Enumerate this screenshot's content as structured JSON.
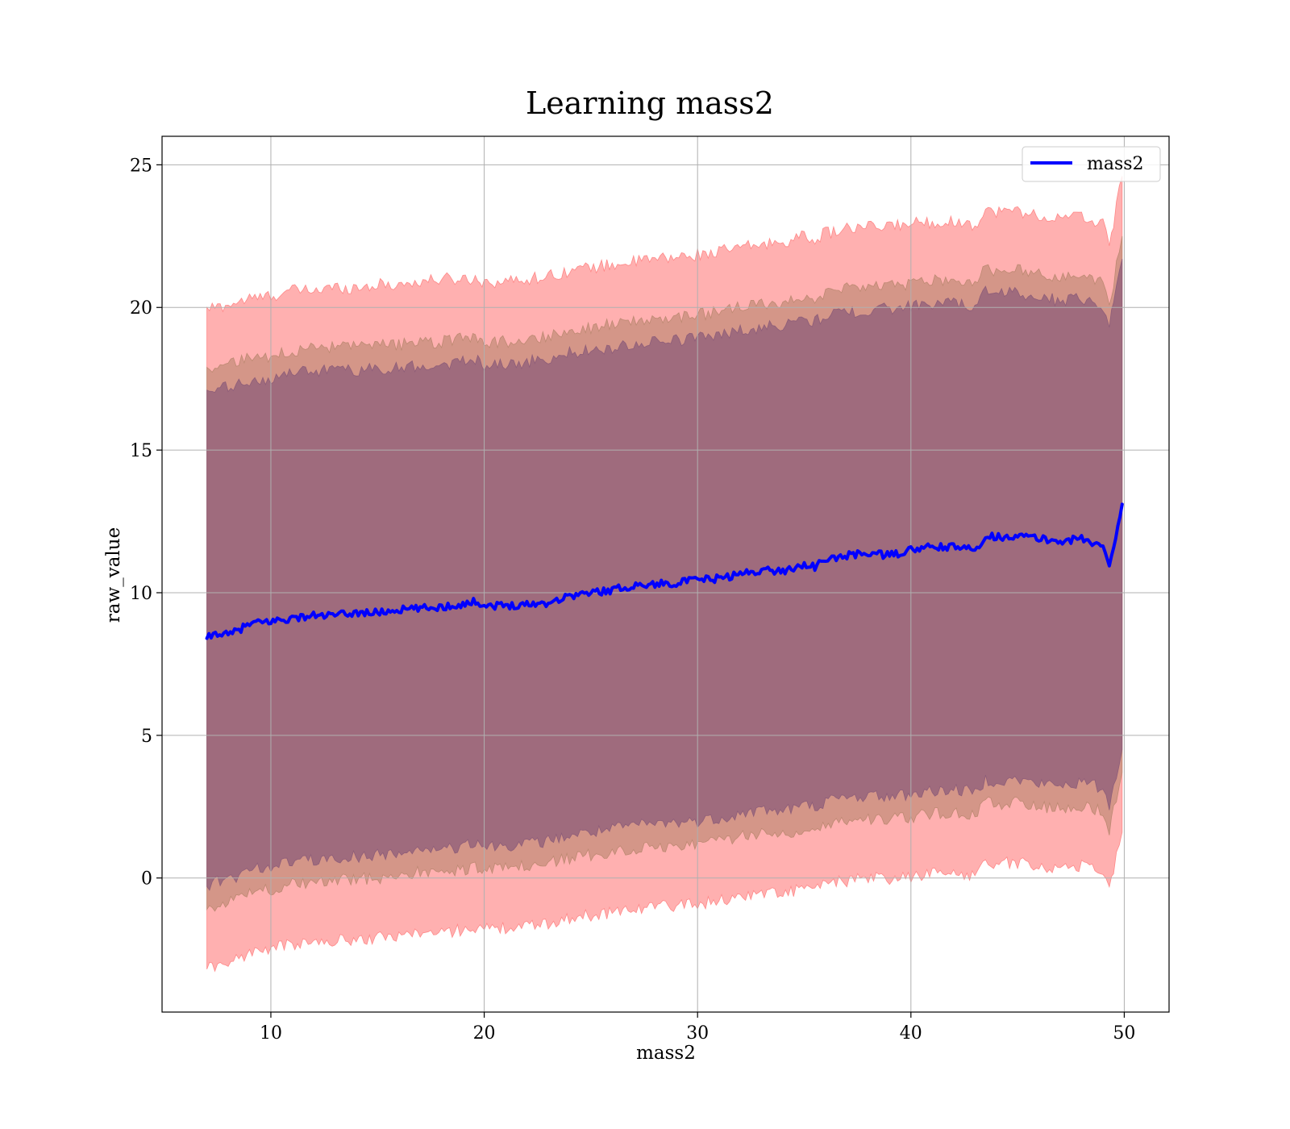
{
  "chart_data": {
    "type": "line",
    "title": "Learning mass2",
    "xlabel": "mass2",
    "ylabel": "raw_value",
    "xlim": [
      4.9,
      52.1
    ],
    "ylim": [
      -4.7,
      26.0
    ],
    "xticks": [
      10,
      20,
      30,
      40,
      50
    ],
    "yticks": [
      0,
      5,
      10,
      15,
      20,
      25
    ],
    "grid": true,
    "legend": {
      "position": "top-right",
      "entries": [
        "mass2"
      ]
    },
    "colors": {
      "line": "#0000ff",
      "band_outer": "#ff7f7f",
      "band_middle": "#b8866e",
      "band_inner": "#8a5a78",
      "grid": "#b0b0b0"
    },
    "x": [
      7.0,
      7.5,
      8,
      9,
      10,
      11,
      12,
      13,
      14,
      15,
      16,
      17,
      18,
      19,
      19.7,
      20,
      21,
      22,
      23,
      24,
      25,
      26,
      27,
      28,
      29,
      30,
      31,
      32,
      33,
      34,
      35,
      35.5,
      36,
      37,
      38,
      39,
      40,
      41,
      42,
      43,
      43.5,
      44,
      45,
      46,
      47,
      48,
      49,
      49.3,
      49.5,
      49.9
    ],
    "series": [
      {
        "name": "mass2",
        "values": [
          8.4,
          8.6,
          8.5,
          8.9,
          9.0,
          9.1,
          9.2,
          9.2,
          9.3,
          9.3,
          9.4,
          9.45,
          9.5,
          9.6,
          9.7,
          9.55,
          9.55,
          9.6,
          9.65,
          9.9,
          10.0,
          10.1,
          10.25,
          10.3,
          10.35,
          10.45,
          10.5,
          10.65,
          10.8,
          10.75,
          11.0,
          10.9,
          11.15,
          11.3,
          11.4,
          11.3,
          11.5,
          11.6,
          11.6,
          11.5,
          12.0,
          11.95,
          12.0,
          11.9,
          11.8,
          11.9,
          11.6,
          11.0,
          11.6,
          13.1
        ]
      }
    ],
    "bands": [
      {
        "upper": [
          20.0,
          20.0,
          20.1,
          20.3,
          20.4,
          20.6,
          20.6,
          20.7,
          20.7,
          20.8,
          20.8,
          20.9,
          21.0,
          21.0,
          21.0,
          20.9,
          20.9,
          21.0,
          21.1,
          21.3,
          21.4,
          21.5,
          21.6,
          21.7,
          21.75,
          21.85,
          21.95,
          22.1,
          22.2,
          22.3,
          22.5,
          22.4,
          22.6,
          22.75,
          22.8,
          22.85,
          22.95,
          23.0,
          23.0,
          22.9,
          23.4,
          23.35,
          23.4,
          23.2,
          23.1,
          23.2,
          22.9,
          22.3,
          23.0,
          24.6
        ],
        "lower": [
          -3.2,
          -3.0,
          -3.0,
          -2.6,
          -2.5,
          -2.3,
          -2.3,
          -2.2,
          -2.15,
          -2.1,
          -2.0,
          -1.9,
          -1.95,
          -1.8,
          -1.7,
          -1.8,
          -1.75,
          -1.7,
          -1.6,
          -1.4,
          -1.3,
          -1.2,
          -1.05,
          -1.0,
          -0.95,
          -0.9,
          -0.8,
          -0.65,
          -0.5,
          -0.55,
          -0.35,
          -0.4,
          -0.2,
          -0.1,
          0.0,
          -0.05,
          0.05,
          0.15,
          0.2,
          0.1,
          0.55,
          0.5,
          0.55,
          0.4,
          0.35,
          0.45,
          0.25,
          -0.4,
          0.3,
          1.6
        ]
      },
      {
        "upper": [
          17.9,
          17.9,
          18.0,
          18.2,
          18.3,
          18.5,
          18.55,
          18.6,
          18.6,
          18.65,
          18.7,
          18.75,
          18.8,
          18.9,
          18.95,
          18.8,
          18.8,
          18.9,
          19.0,
          19.2,
          19.3,
          19.4,
          19.5,
          19.6,
          19.65,
          19.75,
          19.85,
          20.0,
          20.1,
          20.2,
          20.4,
          20.3,
          20.5,
          20.65,
          20.7,
          20.75,
          20.85,
          20.95,
          20.95,
          20.85,
          21.35,
          21.3,
          21.35,
          21.15,
          21.05,
          21.15,
          20.85,
          20.2,
          20.9,
          22.5
        ],
        "lower": [
          -1.1,
          -0.9,
          -0.9,
          -0.5,
          -0.4,
          -0.2,
          -0.2,
          -0.1,
          -0.05,
          0.0,
          0.1,
          0.2,
          0.15,
          0.3,
          0.4,
          0.3,
          0.35,
          0.4,
          0.5,
          0.7,
          0.8,
          0.9,
          1.05,
          1.1,
          1.15,
          1.2,
          1.3,
          1.45,
          1.6,
          1.55,
          1.75,
          1.7,
          1.9,
          2.0,
          2.1,
          2.05,
          2.15,
          2.25,
          2.3,
          2.2,
          2.65,
          2.6,
          2.65,
          2.5,
          2.45,
          2.55,
          2.35,
          1.7,
          2.4,
          3.7
        ]
      },
      {
        "upper": [
          17.1,
          17.1,
          17.2,
          17.4,
          17.5,
          17.7,
          17.75,
          17.8,
          17.8,
          17.85,
          17.9,
          17.95,
          18.0,
          18.1,
          18.15,
          18.0,
          18.0,
          18.1,
          18.2,
          18.4,
          18.5,
          18.6,
          18.7,
          18.8,
          18.85,
          18.95,
          19.05,
          19.2,
          19.3,
          19.4,
          19.6,
          19.5,
          19.7,
          19.85,
          19.9,
          19.95,
          20.05,
          20.15,
          20.15,
          20.05,
          20.55,
          20.5,
          20.55,
          20.35,
          20.25,
          20.35,
          20.05,
          19.4,
          20.1,
          21.7
        ],
        "lower": [
          -0.3,
          -0.1,
          -0.1,
          0.3,
          0.4,
          0.6,
          0.6,
          0.7,
          0.75,
          0.8,
          0.9,
          1.0,
          0.95,
          1.1,
          1.2,
          1.1,
          1.15,
          1.2,
          1.3,
          1.5,
          1.6,
          1.7,
          1.85,
          1.9,
          1.95,
          2.0,
          2.1,
          2.25,
          2.4,
          2.35,
          2.55,
          2.5,
          2.7,
          2.8,
          2.9,
          2.85,
          2.95,
          3.05,
          3.1,
          3.0,
          3.45,
          3.4,
          3.45,
          3.3,
          3.25,
          3.35,
          3.15,
          2.5,
          3.2,
          4.5
        ]
      }
    ]
  }
}
